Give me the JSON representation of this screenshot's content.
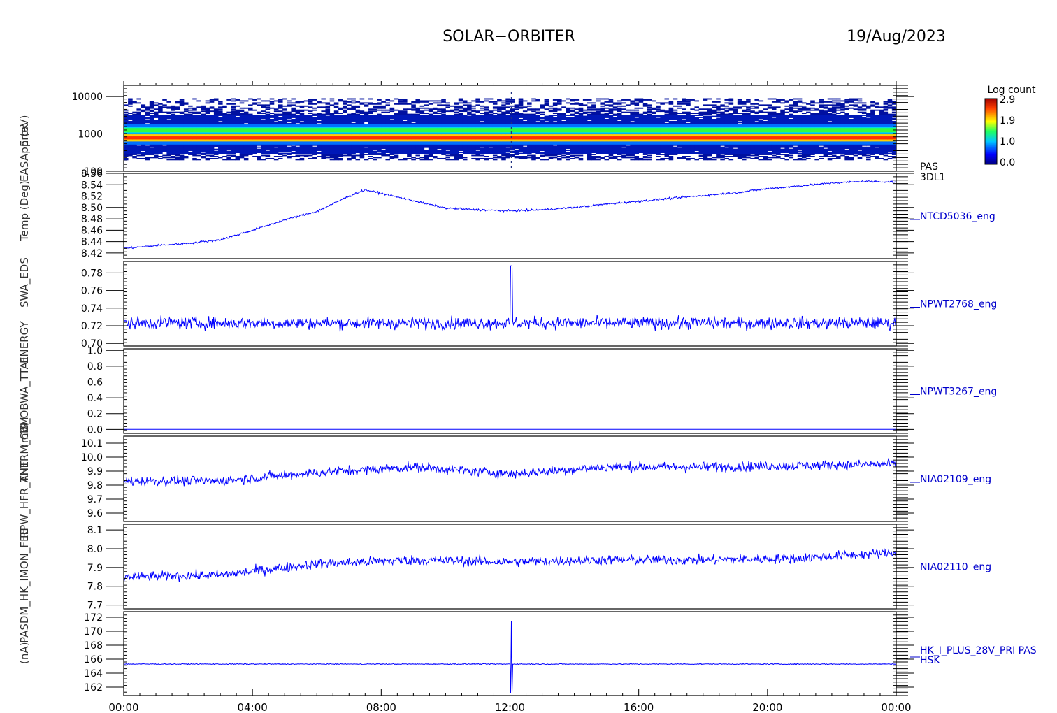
{
  "header": {
    "title": "SOLAR−ORBITER",
    "date": "19/Aug/2023"
  },
  "colorbar": {
    "label": "Log count",
    "ticks": [
      "2.9",
      "1.9",
      "1.0",
      "0.0"
    ]
  },
  "y_title_fragments": [
    "(nA)",
    "PASDM_HK_IMON_FEE",
    "RPW_HFR_ANT",
    "THERM_CSM",
    "(mV)",
    "IS_OBWA_TTA1",
    "ENERGY",
    "SWA_EDS",
    "Temp (Deg)",
    "EAS",
    "Approx",
    "E (eV)"
  ],
  "x_axis": {
    "ticks": [
      "00:00",
      "04:00",
      "08:00",
      "12:00",
      "16:00",
      "20:00",
      "00:00"
    ]
  },
  "chart_data": [
    {
      "type": "heatmap",
      "name": "PAS 3DL1",
      "label_lines": [
        "PAS",
        "3DL1"
      ],
      "x_range_hours": [
        0,
        24
      ],
      "y_scale": "log",
      "y_range": [
        100,
        20000
      ],
      "y_ticks": [
        "10000",
        "1000",
        "100"
      ],
      "y_tick_values": [
        10000,
        1000,
        100
      ],
      "colorbar_range": [
        0.0,
        2.9
      ],
      "band_center_energy": [
        800,
        1300
      ],
      "colors": {
        "low": "#0010a8",
        "mid": "#00c0c0",
        "high": "#ff2000"
      }
    },
    {
      "type": "line",
      "name": "NTCD5036_eng",
      "ylim": [
        8.41,
        8.56
      ],
      "y_ticks": [
        "8.56",
        "8.54",
        "8.52",
        "8.50",
        "8.48",
        "8.46",
        "8.44",
        "8.42"
      ],
      "y_tick_values": [
        8.56,
        8.54,
        8.52,
        8.5,
        8.48,
        8.46,
        8.44,
        8.42
      ],
      "x_hours": [
        0,
        1,
        2,
        3,
        4,
        5,
        6,
        7,
        7.5,
        8,
        9,
        10,
        11,
        12,
        13,
        14,
        15,
        16,
        17,
        18,
        19,
        20,
        21,
        22,
        23,
        24
      ],
      "values": [
        8.428,
        8.433,
        8.437,
        8.443,
        8.46,
        8.478,
        8.493,
        8.52,
        8.531,
        8.525,
        8.512,
        8.499,
        8.496,
        8.494,
        8.496,
        8.5,
        8.506,
        8.511,
        8.516,
        8.521,
        8.526,
        8.533,
        8.538,
        8.543,
        8.546,
        8.545
      ],
      "noise": 0.003,
      "color": "#0000ff"
    },
    {
      "type": "line",
      "name": "NPWT2768_eng",
      "ylim": [
        0.697,
        0.793
      ],
      "y_ticks": [
        "0.78",
        "0.76",
        "0.74",
        "0.72",
        "0.70"
      ],
      "y_tick_values": [
        0.78,
        0.76,
        0.74,
        0.72,
        0.7
      ],
      "baseline": 0.723,
      "noise": 0.012,
      "spike": {
        "x_hour": 12.05,
        "value": 0.788
      },
      "color": "#0000ff"
    },
    {
      "type": "line",
      "name": "NPWT3267_eng",
      "ylim": [
        -0.05,
        1.02
      ],
      "y_ticks": [
        "1.0",
        "0.8",
        "0.6",
        "0.4",
        "0.2",
        "0.0"
      ],
      "y_tick_values": [
        1.0,
        0.8,
        0.6,
        0.4,
        0.2,
        0.0
      ],
      "baseline": 0.0,
      "noise": 0.0,
      "color": "#0000ff"
    },
    {
      "type": "line",
      "name": "NIA02109_eng",
      "ylim": [
        9.54,
        10.15
      ],
      "y_ticks": [
        "10.1",
        "10.0",
        "9.9",
        "9.8",
        "9.7",
        "9.6"
      ],
      "y_tick_values": [
        10.1,
        10.0,
        9.9,
        9.8,
        9.7,
        9.6
      ],
      "x_hours": [
        0,
        3,
        6,
        9,
        12,
        15,
        18,
        21,
        24
      ],
      "values": [
        9.83,
        9.83,
        9.89,
        9.93,
        9.88,
        9.93,
        9.93,
        9.94,
        9.95
      ],
      "noise": 0.06,
      "color": "#0000ff"
    },
    {
      "type": "line",
      "name": "NIA02110_eng",
      "ylim": [
        7.68,
        8.13
      ],
      "y_ticks": [
        "8.1",
        "8.0",
        "7.9",
        "7.8",
        "7.7"
      ],
      "y_tick_values": [
        8.1,
        8.0,
        7.9,
        7.8,
        7.7
      ],
      "x_hours": [
        0,
        3,
        6,
        9,
        12,
        15,
        18,
        21,
        24
      ],
      "values": [
        7.85,
        7.86,
        7.92,
        7.94,
        7.93,
        7.94,
        7.94,
        7.95,
        7.98
      ],
      "noise": 0.045,
      "color": "#0000ff"
    },
    {
      "type": "line",
      "name": "HK_I_PLUS_28V_PRI PAS HSK",
      "label_lines": [
        "HK_I_PLUS_28V_PRI PAS",
        "HSK"
      ],
      "ylim": [
        160.8,
        172.8
      ],
      "y_ticks": [
        "172",
        "170",
        "168",
        "166",
        "164",
        "162"
      ],
      "y_tick_values": [
        172,
        170,
        168,
        166,
        164,
        162
      ],
      "baseline": 165.3,
      "noise": 0.12,
      "spike": {
        "x_hour": 12.05,
        "low": 161.2,
        "high": 171.5
      },
      "color": "#0000ff"
    }
  ]
}
